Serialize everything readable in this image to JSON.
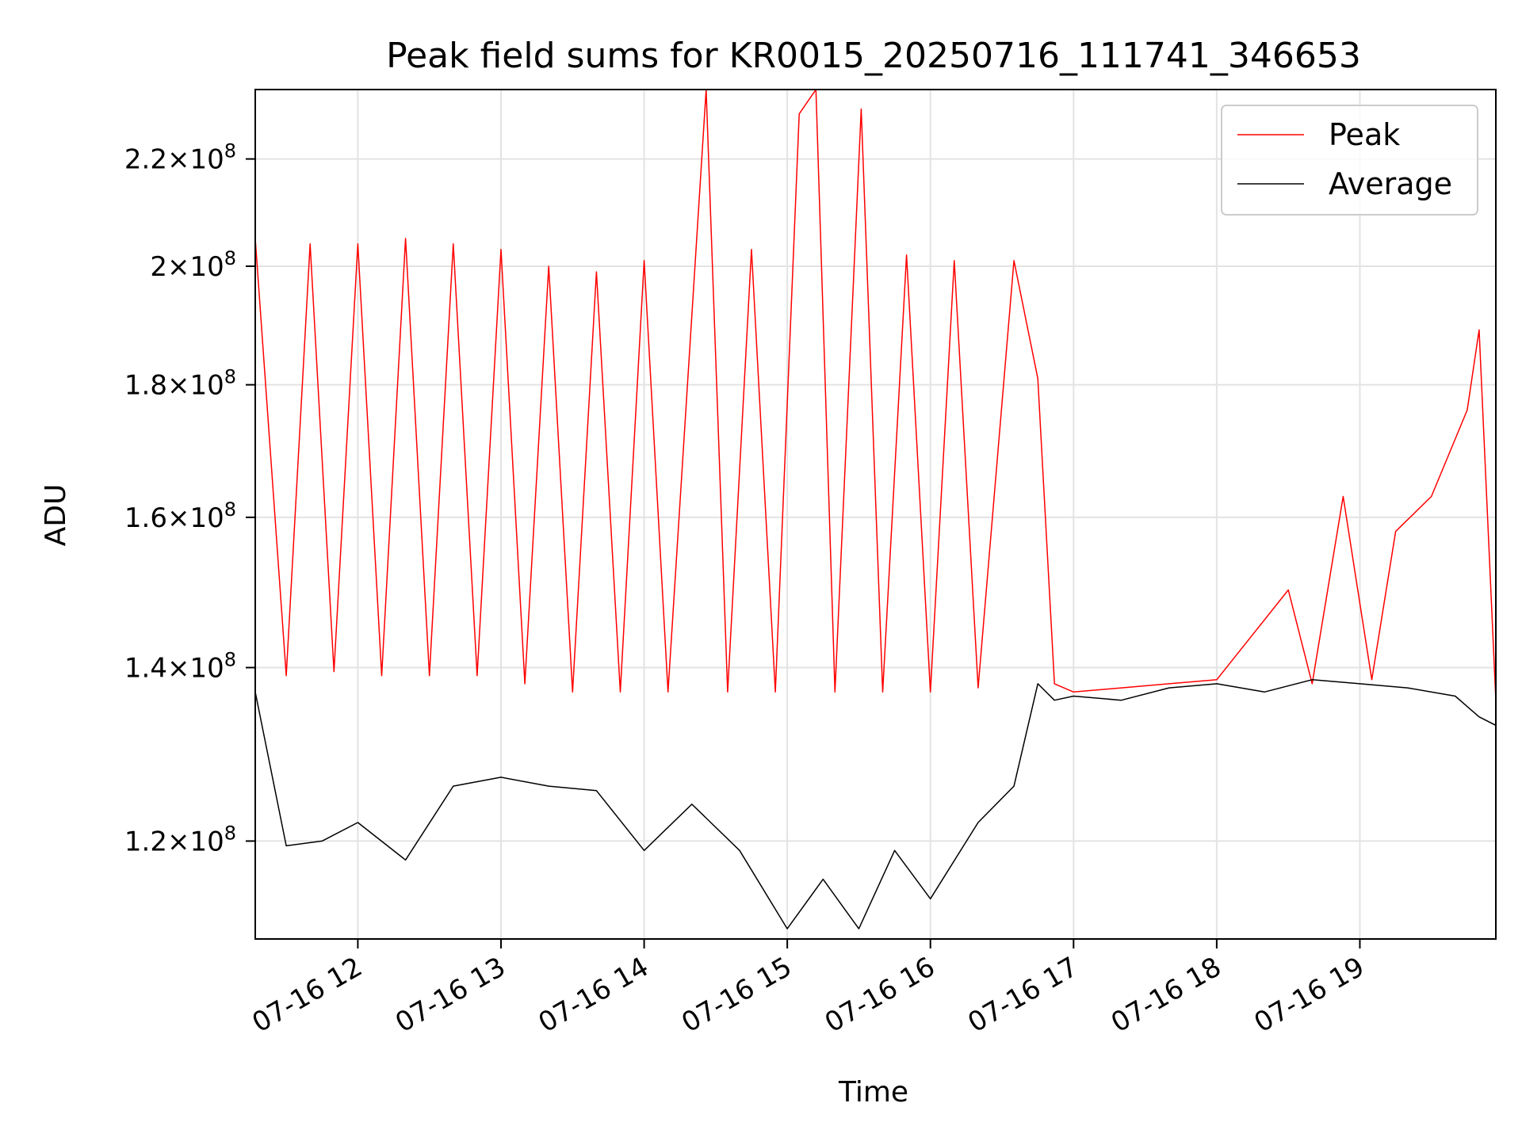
{
  "chart_data": {
    "type": "line",
    "title": "Peak field sums for KR0015_20250716_111741_346653",
    "xlabel": "Time",
    "ylabel": "ADU",
    "x_unit": "date-hour",
    "xlim": [
      "07-16 11:17",
      "07-16 19:57"
    ],
    "ylim": [
      110000000,
      234000000
    ],
    "yscale": "log",
    "grid": true,
    "legend_position": "upper right",
    "x_ticks": [
      {
        "value": "07-16 12:00",
        "label": "07-16 12"
      },
      {
        "value": "07-16 13:00",
        "label": "07-16 13"
      },
      {
        "value": "07-16 14:00",
        "label": "07-16 14"
      },
      {
        "value": "07-16 15:00",
        "label": "07-16 15"
      },
      {
        "value": "07-16 16:00",
        "label": "07-16 16"
      },
      {
        "value": "07-16 17:00",
        "label": "07-16 17"
      },
      {
        "value": "07-16 18:00",
        "label": "07-16 18"
      },
      {
        "value": "07-16 19:00",
        "label": "07-16 19"
      }
    ],
    "y_ticks": [
      {
        "value": 120000000,
        "mantissa": "1.2",
        "exponent": "8"
      },
      {
        "value": 140000000,
        "mantissa": "1.4",
        "exponent": "8"
      },
      {
        "value": 160000000,
        "mantissa": "1.6",
        "exponent": "8"
      },
      {
        "value": 180000000,
        "mantissa": "1.8",
        "exponent": "8"
      },
      {
        "value": 200000000,
        "mantissa": "2",
        "exponent": "8"
      },
      {
        "value": 220000000,
        "mantissa": "2.2",
        "exponent": "8"
      }
    ],
    "series": [
      {
        "name": "Peak",
        "color": "#ff0000",
        "points": [
          [
            "07-16 11:17",
            205000000
          ],
          [
            "07-16 11:30",
            139000000
          ],
          [
            "07-16 11:40",
            204000000
          ],
          [
            "07-16 11:50",
            139500000
          ],
          [
            "07-16 12:00",
            204000000
          ],
          [
            "07-16 12:10",
            139000000
          ],
          [
            "07-16 12:20",
            205000000
          ],
          [
            "07-16 12:30",
            139000000
          ],
          [
            "07-16 12:40",
            204000000
          ],
          [
            "07-16 12:50",
            139000000
          ],
          [
            "07-16 13:00",
            203000000
          ],
          [
            "07-16 13:10",
            138000000
          ],
          [
            "07-16 13:20",
            200000000
          ],
          [
            "07-16 13:30",
            137000000
          ],
          [
            "07-16 13:40",
            199000000
          ],
          [
            "07-16 13:50",
            137000000
          ],
          [
            "07-16 14:00",
            201000000
          ],
          [
            "07-16 14:10",
            137000000
          ],
          [
            "07-16 14:26",
            234000000
          ],
          [
            "07-16 14:35",
            137000000
          ],
          [
            "07-16 14:45",
            203000000
          ],
          [
            "07-16 14:55",
            137000000
          ],
          [
            "07-16 15:05",
            229000000
          ],
          [
            "07-16 15:12",
            234000000
          ],
          [
            "07-16 15:20",
            137000000
          ],
          [
            "07-16 15:31",
            230000000
          ],
          [
            "07-16 15:40",
            137000000
          ],
          [
            "07-16 15:50",
            202000000
          ],
          [
            "07-16 16:00",
            137000000
          ],
          [
            "07-16 16:10",
            201000000
          ],
          [
            "07-16 16:20",
            137500000
          ],
          [
            "07-16 16:35",
            201000000
          ],
          [
            "07-16 16:45",
            181000000
          ],
          [
            "07-16 16:52",
            138000000
          ],
          [
            "07-16 17:00",
            137000000
          ],
          [
            "07-16 17:20",
            137500000
          ],
          [
            "07-16 17:40",
            138000000
          ],
          [
            "07-16 18:00",
            138500000
          ],
          [
            "07-16 18:30",
            150000000
          ],
          [
            "07-16 18:40",
            138000000
          ],
          [
            "07-16 18:53",
            163000000
          ],
          [
            "07-16 19:05",
            138500000
          ],
          [
            "07-16 19:15",
            158000000
          ],
          [
            "07-16 19:30",
            163000000
          ],
          [
            "07-16 19:45",
            176000000
          ],
          [
            "07-16 19:50",
            189000000
          ],
          [
            "07-16 19:57",
            136000000
          ]
        ]
      },
      {
        "name": "Average",
        "color": "#000000",
        "points": [
          [
            "07-16 11:17",
            137000000
          ],
          [
            "07-16 11:30",
            119500000
          ],
          [
            "07-16 11:45",
            120000000
          ],
          [
            "07-16 12:00",
            122000000
          ],
          [
            "07-16 12:20",
            118000000
          ],
          [
            "07-16 12:40",
            126000000
          ],
          [
            "07-16 13:00",
            127000000
          ],
          [
            "07-16 13:20",
            126000000
          ],
          [
            "07-16 13:40",
            125500000
          ],
          [
            "07-16 14:00",
            119000000
          ],
          [
            "07-16 14:20",
            124000000
          ],
          [
            "07-16 14:40",
            119000000
          ],
          [
            "07-16 15:00",
            111000000
          ],
          [
            "07-16 15:15",
            116000000
          ],
          [
            "07-16 15:30",
            111000000
          ],
          [
            "07-16 15:45",
            119000000
          ],
          [
            "07-16 16:00",
            114000000
          ],
          [
            "07-16 16:20",
            122000000
          ],
          [
            "07-16 16:35",
            126000000
          ],
          [
            "07-16 16:45",
            138000000
          ],
          [
            "07-16 16:52",
            136000000
          ],
          [
            "07-16 17:00",
            136500000
          ],
          [
            "07-16 17:20",
            136000000
          ],
          [
            "07-16 17:40",
            137500000
          ],
          [
            "07-16 18:00",
            138000000
          ],
          [
            "07-16 18:20",
            137000000
          ],
          [
            "07-16 18:40",
            138500000
          ],
          [
            "07-16 19:00",
            138000000
          ],
          [
            "07-16 19:20",
            137500000
          ],
          [
            "07-16 19:40",
            136500000
          ],
          [
            "07-16 19:50",
            134000000
          ],
          [
            "07-16 19:57",
            133000000
          ]
        ]
      }
    ]
  }
}
